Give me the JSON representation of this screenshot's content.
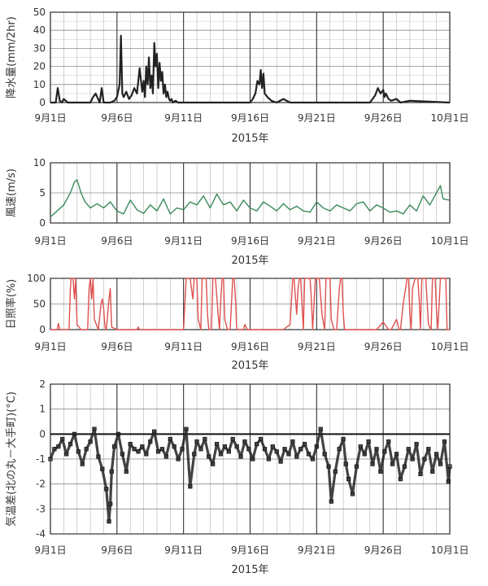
{
  "chart_data": [
    {
      "type": "line",
      "ylabel": "降水量(mm/2hr)",
      "xlabel": "2015年",
      "ylim": [
        0,
        50
      ],
      "yticks": [
        "0",
        "10",
        "20",
        "30",
        "40",
        "50"
      ],
      "xticks": [
        "9月1日",
        "9月6日",
        "9月11日",
        "9月16日",
        "9月21日",
        "9月26日",
        "10月1日"
      ],
      "grid": true,
      "color": "#222222",
      "series": [
        {
          "x": [
            1.0,
            1.4,
            1.55,
            1.7,
            1.85,
            2.0,
            2.3,
            2.5,
            3.0,
            4.0,
            4.2,
            4.4,
            4.7,
            4.85,
            5.0,
            5.5,
            5.8,
            6.0,
            6.2,
            6.3,
            6.4,
            6.5,
            6.7,
            6.9,
            7.1,
            7.3,
            7.5,
            7.7,
            7.9,
            8.0,
            8.1,
            8.2,
            8.3,
            8.4,
            8.5,
            8.6,
            8.7,
            8.8,
            8.9,
            9.0,
            9.1,
            9.2,
            9.3,
            9.4,
            9.5,
            9.6,
            9.7,
            9.8,
            9.9,
            10.0,
            10.1,
            10.2,
            10.4,
            10.6,
            11.0,
            14.0,
            16.0,
            16.2,
            16.4,
            16.55,
            16.7,
            16.8,
            16.9,
            17.0,
            17.1,
            17.3,
            17.6,
            18.0,
            18.5,
            19.0,
            24.0,
            25.0,
            25.4,
            25.6,
            25.8,
            25.9,
            26.0,
            26.1,
            26.2,
            26.4,
            26.6,
            27.0,
            27.3,
            28.0,
            31.0
          ],
          "y": [
            0,
            0,
            8,
            1,
            0,
            2,
            0,
            0,
            0,
            0,
            3,
            5,
            0,
            8,
            0,
            0,
            1,
            3,
            10,
            37,
            5,
            3,
            6,
            2,
            4,
            8,
            5,
            19,
            6,
            12,
            3,
            20,
            10,
            25,
            8,
            15,
            5,
            33,
            20,
            27,
            8,
            22,
            12,
            17,
            5,
            10,
            3,
            6,
            2,
            1,
            2,
            0,
            1,
            0,
            0,
            0,
            0,
            2,
            5,
            12,
            10,
            18,
            8,
            16,
            5,
            3,
            1,
            0,
            2,
            0,
            0,
            0,
            4,
            8,
            5,
            6,
            7,
            3,
            5,
            2,
            1,
            2,
            0,
            1,
            0
          ]
        }
      ]
    },
    {
      "type": "line",
      "ylabel": "風速(m/s)",
      "xlabel": "2015年",
      "ylim": [
        0,
        10
      ],
      "yticks": [
        "0",
        "5",
        "10"
      ],
      "xticks": [
        "9月1日",
        "9月6日",
        "9月11日",
        "9月16日",
        "9月21日",
        "9月26日",
        "10月1日"
      ],
      "grid": true,
      "color": "#3a8a5a",
      "series": [
        {
          "x": [
            1.0,
            1.5,
            2.0,
            2.5,
            2.8,
            3.0,
            3.3,
            3.6,
            4.0,
            4.5,
            5.0,
            5.5,
            6.0,
            6.5,
            7.0,
            7.5,
            8.0,
            8.5,
            9.0,
            9.5,
            10.0,
            10.5,
            11.0,
            11.5,
            12.0,
            12.5,
            13.0,
            13.5,
            14.0,
            14.5,
            15.0,
            15.5,
            16.0,
            16.5,
            17.0,
            17.5,
            18.0,
            18.5,
            19.0,
            19.5,
            20.0,
            20.5,
            21.0,
            21.5,
            22.0,
            22.5,
            23.0,
            23.5,
            24.0,
            24.5,
            25.0,
            25.5,
            26.0,
            26.5,
            27.0,
            27.5,
            28.0,
            28.5,
            29.0,
            29.5,
            30.0,
            30.3,
            30.5,
            31.0
          ],
          "y": [
            1.0,
            2.0,
            3.0,
            5.0,
            6.8,
            7.2,
            5.0,
            3.5,
            2.5,
            3.2,
            2.5,
            3.5,
            2.0,
            1.5,
            3.8,
            2.2,
            1.6,
            3.0,
            2.0,
            4.0,
            1.5,
            2.5,
            2.2,
            3.5,
            3.0,
            4.5,
            2.5,
            4.8,
            3.0,
            3.5,
            2.0,
            3.8,
            2.5,
            2.0,
            3.5,
            2.8,
            2.0,
            3.2,
            2.2,
            2.8,
            2.0,
            1.8,
            3.5,
            2.5,
            2.0,
            3.0,
            2.5,
            2.0,
            3.2,
            3.5,
            2.0,
            3.0,
            2.5,
            1.8,
            2.0,
            1.5,
            3.0,
            2.0,
            4.5,
            3.0,
            5.0,
            6.2,
            4.0,
            3.8
          ]
        }
      ]
    },
    {
      "type": "line",
      "ylabel": "日照率(%)",
      "xlabel": "2015年",
      "ylim": [
        0,
        100
      ],
      "yticks": [
        "0",
        "50",
        "100"
      ],
      "xticks": [
        "9月1日",
        "9月6日",
        "9月11日",
        "9月16日",
        "9月21日",
        "9月26日",
        "10月1日"
      ],
      "grid": true,
      "color": "#e05050",
      "series": [
        {
          "x": [
            1.0,
            1.5,
            1.6,
            1.7,
            2.0,
            2.4,
            2.5,
            2.55,
            2.7,
            2.8,
            2.9,
            3.0,
            3.3,
            3.8,
            3.9,
            4.0,
            4.1,
            4.2,
            4.3,
            4.6,
            4.8,
            4.9,
            5.0,
            5.1,
            5.2,
            5.3,
            5.4,
            5.5,
            5.6,
            6.0,
            7.0,
            7.5,
            7.6,
            7.7,
            8.0,
            11.0,
            11.2,
            11.3,
            11.5,
            11.7,
            11.8,
            11.9,
            12.0,
            12.1,
            12.3,
            12.4,
            12.6,
            12.7,
            12.8,
            12.9,
            13.0,
            13.1,
            13.2,
            13.4,
            13.6,
            13.7,
            13.8,
            13.9,
            14.0,
            14.1,
            14.3,
            14.5,
            14.7,
            14.8,
            14.9,
            15.0,
            15.1,
            15.3,
            15.5,
            15.6,
            15.8,
            16.0,
            16.5,
            17.0,
            18.0,
            18.5,
            19.0,
            19.1,
            19.2,
            19.3,
            19.5,
            19.6,
            19.7,
            19.8,
            19.9,
            20.0,
            20.1,
            20.3,
            20.5,
            20.6,
            20.7,
            20.9,
            21.0,
            21.1,
            21.2,
            21.4,
            21.6,
            21.7,
            21.8,
            21.9,
            22.0,
            22.1,
            22.3,
            22.5,
            22.7,
            22.8,
            22.9,
            23.0,
            23.1,
            23.3,
            23.5,
            24.0,
            25.0,
            25.5,
            26.0,
            26.4,
            26.5,
            26.6,
            27.0,
            27.2,
            27.3,
            27.5,
            27.8,
            27.9,
            28.0,
            28.1,
            28.2,
            28.4,
            28.6,
            28.7,
            28.8,
            28.9,
            29.0,
            29.1,
            29.2,
            29.4,
            29.6,
            29.7,
            29.8,
            29.9,
            30.0,
            30.1,
            30.3,
            30.5,
            30.7,
            30.8,
            30.9,
            31.0
          ],
          "y": [
            0,
            0,
            12,
            0,
            0,
            0,
            80,
            100,
            100,
            60,
            100,
            10,
            0,
            0,
            80,
            100,
            60,
            100,
            20,
            0,
            50,
            60,
            40,
            5,
            0,
            30,
            60,
            80,
            5,
            0,
            0,
            0,
            5,
            0,
            0,
            0,
            100,
            100,
            100,
            60,
            100,
            100,
            100,
            20,
            0,
            100,
            100,
            100,
            30,
            0,
            0,
            0,
            100,
            100,
            30,
            0,
            60,
            100,
            100,
            20,
            0,
            0,
            100,
            100,
            60,
            0,
            0,
            0,
            0,
            10,
            0,
            0,
            0,
            0,
            0,
            0,
            10,
            50,
            100,
            100,
            30,
            80,
            100,
            100,
            50,
            0,
            100,
            100,
            100,
            60,
            0,
            100,
            100,
            100,
            100,
            30,
            0,
            100,
            100,
            100,
            100,
            20,
            0,
            0,
            80,
            100,
            100,
            30,
            0,
            0,
            0,
            0,
            0,
            0,
            15,
            0,
            0,
            0,
            20,
            0,
            0,
            50,
            100,
            100,
            30,
            0,
            80,
            100,
            100,
            60,
            0,
            100,
            100,
            100,
            100,
            10,
            0,
            100,
            100,
            100,
            40,
            0,
            100,
            100,
            100,
            0,
            0,
            0
          ]
        }
      ]
    },
    {
      "type": "scatter",
      "ylabel": "気温差(北の丸－大手町)(°C)",
      "xlabel": "2015年",
      "ylim": [
        -4,
        2
      ],
      "yticks": [
        "-4",
        "-3",
        "-2",
        "-1",
        "0",
        "1",
        "2"
      ],
      "xticks": [
        "9月1日",
        "9月6日",
        "9月11日",
        "9月16日",
        "9月21日",
        "9月26日",
        "10月1日"
      ],
      "grid": true,
      "reference_line": 0,
      "color": "#222222",
      "series": [
        {
          "x": [
            1.0,
            1.3,
            1.6,
            1.9,
            2.2,
            2.5,
            2.8,
            3.1,
            3.4,
            3.7,
            4.0,
            4.3,
            4.6,
            4.9,
            5.2,
            5.4,
            5.5,
            5.6,
            5.8,
            6.1,
            6.4,
            6.7,
            7.0,
            7.3,
            7.6,
            7.9,
            8.2,
            8.5,
            8.8,
            9.1,
            9.4,
            9.7,
            10.0,
            10.3,
            10.6,
            10.9,
            11.2,
            11.5,
            11.8,
            12.0,
            12.3,
            12.6,
            12.9,
            13.2,
            13.5,
            13.8,
            14.1,
            14.4,
            14.7,
            15.0,
            15.3,
            15.6,
            15.9,
            16.2,
            16.5,
            16.8,
            17.1,
            17.4,
            17.7,
            18.0,
            18.3,
            18.6,
            18.9,
            19.2,
            19.5,
            19.8,
            20.1,
            20.4,
            20.7,
            21.0,
            21.3,
            21.6,
            21.9,
            22.1,
            22.4,
            22.7,
            23.0,
            23.2,
            23.4,
            23.7,
            24.0,
            24.3,
            24.6,
            24.9,
            25.2,
            25.5,
            25.8,
            26.1,
            26.4,
            26.7,
            27.0,
            27.3,
            27.6,
            27.9,
            28.2,
            28.5,
            28.8,
            29.1,
            29.4,
            29.7,
            30.0,
            30.3,
            30.6,
            30.9,
            31.0
          ],
          "y": [
            -1.0,
            -0.6,
            -0.5,
            -0.2,
            -0.8,
            -0.4,
            0.0,
            -0.7,
            -1.2,
            -0.6,
            -0.3,
            0.2,
            -0.9,
            -1.4,
            -2.2,
            -3.5,
            -2.8,
            -1.5,
            -0.5,
            0.0,
            -0.8,
            -1.5,
            -0.4,
            -0.6,
            -0.7,
            -0.5,
            -0.8,
            -0.3,
            0.1,
            -0.7,
            -0.6,
            -0.9,
            -0.2,
            -0.5,
            -1.0,
            -0.6,
            0.2,
            -2.1,
            -0.8,
            -0.3,
            -0.6,
            -0.2,
            -0.9,
            -1.2,
            -0.4,
            -0.8,
            -0.5,
            -0.7,
            -0.2,
            -0.5,
            -0.9,
            -0.3,
            -0.6,
            -1.0,
            -0.4,
            -0.2,
            -0.6,
            -1.0,
            -0.5,
            -0.7,
            -1.1,
            -0.6,
            -0.8,
            -0.3,
            -0.9,
            -0.6,
            -0.4,
            -0.8,
            -1.0,
            -0.5,
            0.2,
            -0.8,
            -1.3,
            -2.7,
            -1.5,
            -0.6,
            -0.2,
            -1.2,
            -1.8,
            -2.4,
            -1.3,
            -0.5,
            -0.8,
            -0.3,
            -1.2,
            -0.6,
            -1.5,
            -0.7,
            -0.3,
            -1.2,
            -0.8,
            -1.8,
            -1.3,
            -0.6,
            -1.0,
            -0.4,
            -1.6,
            -1.0,
            -0.6,
            -1.5,
            -0.8,
            -1.2,
            -0.3,
            -1.9,
            -1.3
          ]
        }
      ]
    }
  ]
}
